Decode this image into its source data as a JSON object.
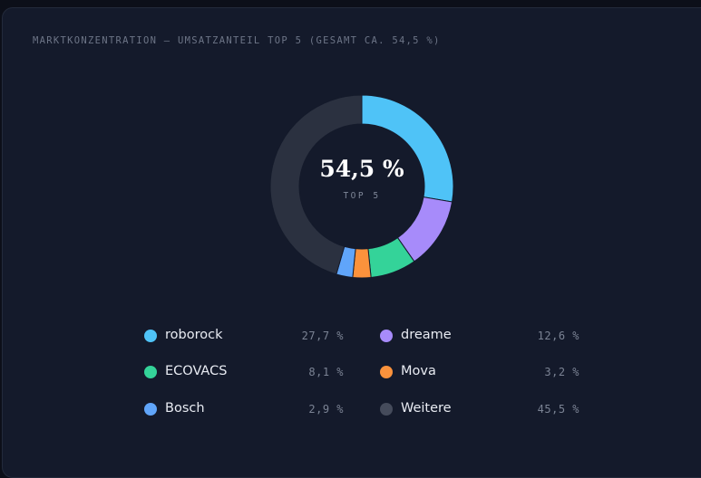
{
  "chart_data": {
    "type": "pie",
    "variant": "donut",
    "title": "MARKTKONZENTRATION – UMSATZANTEIL TOP 5 (GESAMT CA. 54,5 %)",
    "center_value": "54,5 %",
    "center_label": "TOP 5",
    "slices": [
      {
        "name": "roborock",
        "value": 27.7,
        "value_label": "27,7 %",
        "color": "#4fc3f7"
      },
      {
        "name": "dreame",
        "value": 12.6,
        "value_label": "12,6 %",
        "color": "#a78bfa"
      },
      {
        "name": "ECOVACS",
        "value": 8.1,
        "value_label": "8,1 %",
        "color": "#34d399"
      },
      {
        "name": "Mova",
        "value": 3.2,
        "value_label": "3,2 %",
        "color": "#fb923c"
      },
      {
        "name": "Bosch",
        "value": 2.9,
        "value_label": "2,9 %",
        "color": "#60a5fa"
      },
      {
        "name": "Weitere",
        "value": 45.5,
        "value_label": "45,5 %",
        "color": "#2b3140"
      }
    ],
    "legend_order": [
      "roborock",
      "dreame",
      "ECOVACS",
      "Mova",
      "Bosch",
      "Weitere"
    ]
  },
  "colors": {
    "card_background": "#141a2b",
    "legend_weitere_dot": "#454b5b"
  }
}
